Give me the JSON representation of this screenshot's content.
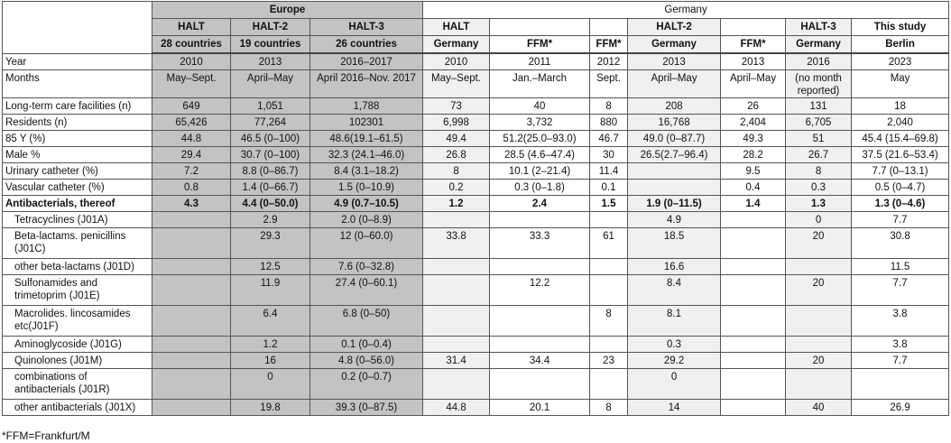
{
  "header": {
    "europe": "Europe",
    "germany": "Germany",
    "studies": [
      "HALT",
      "HALT-2",
      "HALT-3",
      "HALT",
      "",
      "",
      "HALT-2",
      "",
      "HALT-3",
      "This study"
    ],
    "regions": [
      "28 countries",
      "19 countries",
      "26 countries",
      "Germany",
      "FFM*",
      "FFM*",
      "Germany",
      "FFM*",
      "Germany",
      "Berlin"
    ]
  },
  "column_shading": [
    "europe",
    "europe",
    "europe",
    "light",
    "none",
    "none",
    "light",
    "none",
    "light",
    "none"
  ],
  "colors": {
    "europe": "#c3c3c3",
    "light": "#f0f0f0"
  },
  "rows": [
    {
      "label": "Year",
      "values": [
        "2010",
        "2013",
        "2016–2017",
        "2010",
        "2011",
        "2012",
        "2013",
        "2013",
        "2016",
        "2023"
      ]
    },
    {
      "label": "Months",
      "values": [
        "May–Sept.",
        "April–May",
        "April 2016–Nov. 2017",
        "May–Sept.",
        "Jan.–March",
        "Sept.",
        "April–May",
        "April–May",
        "(no month reported)",
        "May"
      ],
      "tall": "m"
    },
    {
      "label": "Long-term care facilities (n)",
      "values": [
        "649",
        "1,051",
        "1,788",
        "73",
        "40",
        "8",
        "208",
        "26",
        "131",
        "18"
      ]
    },
    {
      "label": "Residents (n)",
      "values": [
        "65,426",
        "77,264",
        "102301",
        "6,998",
        "3,732",
        "880",
        "16,768",
        "2,404",
        "6,705",
        "2,040"
      ]
    },
    {
      "label": "85 Y (%)",
      "values": [
        "44.8",
        "46.5 (0–100)",
        "48.6(19.1–61.5)",
        "49.4",
        "51.2(25.0–93.0)",
        "46.7",
        "49.0 (0–87.7)",
        "49.3",
        "51",
        "45.4 (15.4–69.8)"
      ]
    },
    {
      "label": "Male %",
      "values": [
        "29.4",
        "30.7 (0–100)",
        "32.3 (24.1–46.0)",
        "26.8",
        "28.5 (4.6–47.4)",
        "30",
        "26.5(2.7–96.4)",
        "28.2",
        "26.7",
        "37.5 (21.6–53.4)"
      ]
    },
    {
      "label": "Urinary catheter (%)",
      "values": [
        "7.2",
        "8.8 (0–86.7)",
        "8.4 (3.1–18.2)",
        "8",
        "10.1 (2–21.4)",
        "11.4",
        "",
        "9.5",
        "8",
        "7.7 (0–13.1)"
      ]
    },
    {
      "label": "Vascular catheter (%)",
      "values": [
        "0.8",
        "1.4 (0–66.7)",
        "1.5 (0–10.9)",
        "0.2",
        "0.3 (0–1.8)",
        "0.1",
        "",
        "0.4",
        "0.3",
        "0.5 (0–4.7)"
      ]
    },
    {
      "label": "Antibacterials, thereof",
      "bold": true,
      "values": [
        "4.3",
        "4.4 (0–50.0)",
        "4.9 (0.7–10.5)",
        "1.2",
        "2.4",
        "1.5",
        "1.9 (0–11.5)",
        "1.4",
        "1.3",
        "1.3 (0–4.6)"
      ]
    },
    {
      "label": "Tetracyclines (J01A)",
      "indent": true,
      "values": [
        "",
        "2.9",
        "2.0 (0–8.9)",
        "",
        "",
        "",
        "4.9",
        "",
        "0",
        "7.7"
      ]
    },
    {
      "label": "Beta-lactams. penicillins (J01C)",
      "indent": true,
      "tall": "d",
      "values": [
        "",
        "29.3",
        "12 (0–60.0)",
        "33.8",
        "33.3",
        "61",
        "18.5",
        "",
        "20",
        "30.8"
      ]
    },
    {
      "label": "other beta-lactams (J01D)",
      "indent": true,
      "values": [
        "",
        "12.5",
        "7.6 (0–32.8)",
        "",
        "",
        "",
        "16.6",
        "",
        "",
        "11.5"
      ]
    },
    {
      "label": "Sulfonamides and trimetoprim (J01E)",
      "indent": true,
      "tall": "d",
      "values": [
        "",
        "11.9",
        "27.4 (0–60.1)",
        "",
        "12.2",
        "",
        "8.4",
        "",
        "20",
        "7.7"
      ]
    },
    {
      "label": "Macrolides. lincosamides etc(J01F)",
      "indent": true,
      "tall": "d",
      "values": [
        "",
        "6.4",
        "6.8 (0–50)",
        "",
        "",
        "8",
        "8.1",
        "",
        "",
        "3.8"
      ]
    },
    {
      "label": "Aminoglycoside (J01G)",
      "indent": true,
      "values": [
        "",
        "1.2",
        "0.1 (0–0.4)",
        "",
        "",
        "",
        "0.3",
        "",
        "",
        "3.8"
      ]
    },
    {
      "label": "Quinolones (J01M)",
      "indent": true,
      "values": [
        "",
        "16",
        "4.8 (0–56.0)",
        "31.4",
        "34.4",
        "23",
        "29.2",
        "",
        "20",
        "7.7"
      ]
    },
    {
      "label": "combinations of antibacterials (J01R)",
      "indent": true,
      "tall": "d",
      "values": [
        "",
        "0",
        "0.2 (0–0.7)",
        "",
        "",
        "",
        "0",
        "",
        "",
        ""
      ]
    },
    {
      "label": "other antibacterials (J01X)",
      "indent": true,
      "values": [
        "",
        "19.8",
        "39.3 (0–87.5)",
        "44.8",
        "20.1",
        "8",
        "14",
        "",
        "40",
        "26.9"
      ]
    }
  ],
  "footnote": "*FFM=Frankfurt/M"
}
